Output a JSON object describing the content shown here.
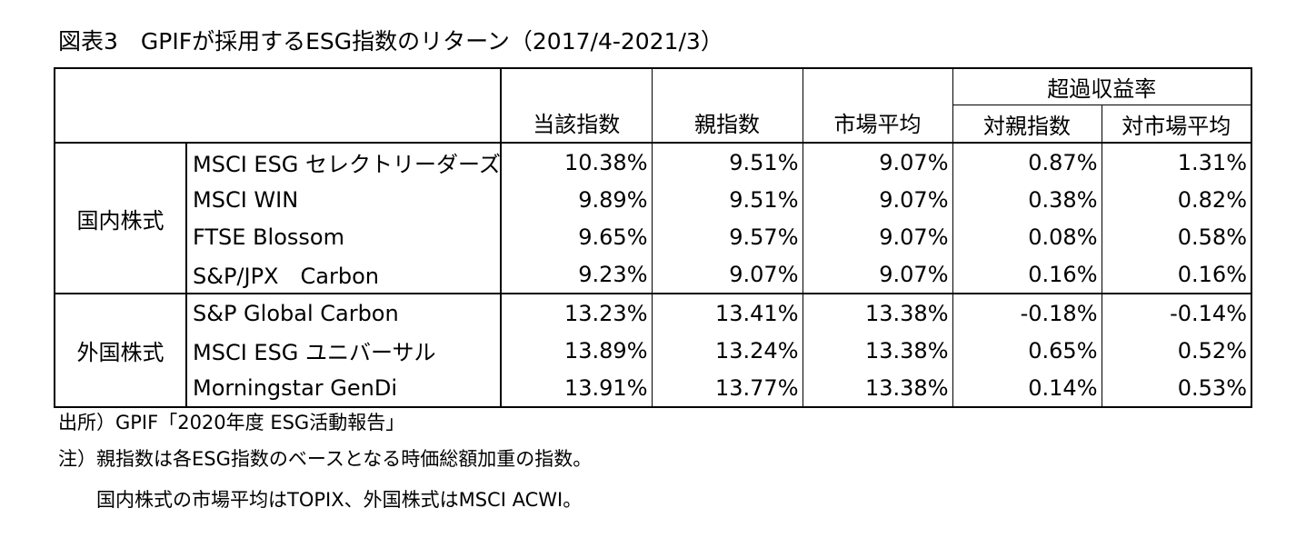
{
  "title": "図表3　GPIFが採用するESG指数のリターン（2017/4-2021/3）",
  "table": {
    "super_header": "超過収益率",
    "headers": [
      "当該指数",
      "親指数",
      "市場平均",
      "対親指数",
      "対市場平均"
    ],
    "groups": [
      {
        "label": "国内株式",
        "rows": [
          {
            "name": "MSCI ESG セレクトリーダーズ",
            "values": [
              "10.38%",
              "9.51%",
              "9.07%",
              "0.87%",
              "1.31%"
            ]
          },
          {
            "name": "MSCI WIN",
            "values": [
              "9.89%",
              "9.51%",
              "9.07%",
              "0.38%",
              "0.82%"
            ]
          },
          {
            "name": "FTSE Blossom",
            "values": [
              "9.65%",
              "9.57%",
              "9.07%",
              "0.08%",
              "0.58%"
            ]
          },
          {
            "name": "S&P/JPX　Carbon",
            "values": [
              "9.23%",
              "9.07%",
              "9.07%",
              "0.16%",
              "0.16%"
            ]
          }
        ]
      },
      {
        "label": "外国株式",
        "rows": [
          {
            "name": "S&P Global Carbon",
            "values": [
              "13.23%",
              "13.41%",
              "13.38%",
              "-0.18%",
              "-0.14%"
            ]
          },
          {
            "name": "MSCI ESG ユニバーサル",
            "values": [
              "13.89%",
              "13.24%",
              "13.38%",
              "0.65%",
              "0.52%"
            ]
          },
          {
            "name": "Morningstar GenDi",
            "values": [
              "13.91%",
              "13.77%",
              "13.38%",
              "0.14%",
              "0.53%"
            ]
          }
        ]
      }
    ]
  },
  "notes": {
    "source": "出所）GPIF「2020年度 ESG活動報告」",
    "note1": "注）親指数は各ESG指数のベースとなる時価総額加重の指数。",
    "note2": "国内株式の市場平均はTOPIX、外国株式はMSCI ACWI。"
  }
}
